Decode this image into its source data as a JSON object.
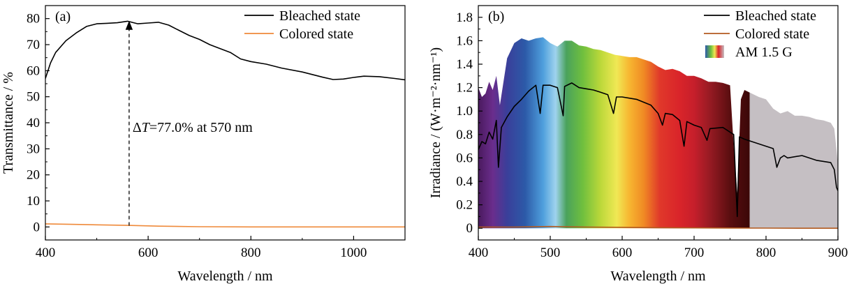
{
  "chart_data": [
    {
      "type": "line",
      "panel_label": "(a)",
      "xlabel": "Wavelength / nm",
      "ylabel": "Transmittance / %",
      "xlim": [
        400,
        1100
      ],
      "ylim": [
        -5,
        85
      ],
      "xticks": [
        400,
        600,
        800,
        1000
      ],
      "yticks": [
        0,
        10,
        20,
        30,
        40,
        50,
        60,
        70,
        80
      ],
      "grid": false,
      "legend_position": "top-right",
      "annotation": {
        "prefix": "Δ",
        "symbol": "T",
        "text": "=77.0% at 570 nm",
        "arrow_x": 563,
        "arrow_from_y": 0.5,
        "arrow_to_y": 78.5
      },
      "series": [
        {
          "name": "Bleached state",
          "color": "#000000",
          "x": [
            400,
            410,
            420,
            440,
            460,
            480,
            500,
            520,
            540,
            560,
            580,
            600,
            620,
            640,
            660,
            680,
            700,
            720,
            740,
            760,
            780,
            800,
            830,
            860,
            900,
            940,
            960,
            980,
            1000,
            1020,
            1050,
            1080,
            1100
          ],
          "y": [
            57,
            63,
            67,
            71.5,
            74.5,
            77,
            78,
            78.2,
            78.4,
            79,
            78,
            78.3,
            78.6,
            77.5,
            75.5,
            73.5,
            72,
            70,
            68.5,
            67,
            64.5,
            63.5,
            62.5,
            61,
            59.5,
            57.5,
            56.6,
            56.8,
            57.4,
            57.9,
            57.7,
            57,
            56.5
          ]
        },
        {
          "name": "Colored state",
          "color": "#ef8a3a",
          "x": [
            400,
            450,
            500,
            560,
            620,
            700,
            800,
            900,
            1000,
            1100
          ],
          "y": [
            1.2,
            1.0,
            0.8,
            0.6,
            0.3,
            0.1,
            0,
            0,
            0,
            0
          ]
        }
      ]
    },
    {
      "type": "line",
      "panel_label": "(b)",
      "xlabel": "Wavelength / nm",
      "ylabel": "Irradiance / (W·m⁻²·nm⁻¹)",
      "xlim": [
        400,
        900
      ],
      "ylim": [
        -0.1,
        1.9
      ],
      "xticks": [
        400,
        500,
        600,
        700,
        800,
        900
      ],
      "yticks": [
        0,
        0.2,
        0.4,
        0.6,
        0.8,
        1.0,
        1.2,
        1.4,
        1.6,
        1.8
      ],
      "grid": false,
      "legend_position": "top-right",
      "series": [
        {
          "name": "Bleached state",
          "color": "#000000",
          "x": [
            400,
            405,
            410,
            415,
            420,
            425,
            428,
            432,
            440,
            450,
            460,
            470,
            480,
            486,
            490,
            500,
            510,
            518,
            520,
            530,
            540,
            550,
            560,
            570,
            580,
            588,
            592,
            600,
            620,
            640,
            650,
            656,
            660,
            670,
            680,
            686,
            690,
            700,
            710,
            718,
            722,
            740,
            755,
            760,
            763,
            770,
            780,
            800,
            810,
            815,
            820,
            825,
            830,
            850,
            870,
            890,
            895,
            898,
            900
          ],
          "y": [
            0.67,
            0.74,
            0.72,
            0.82,
            0.76,
            0.92,
            0.52,
            0.86,
            0.95,
            1.04,
            1.1,
            1.17,
            1.22,
            0.98,
            1.22,
            1.22,
            1.2,
            0.96,
            1.21,
            1.24,
            1.2,
            1.19,
            1.18,
            1.16,
            1.14,
            0.98,
            1.12,
            1.12,
            1.1,
            1.05,
            0.98,
            0.88,
            0.98,
            0.97,
            0.92,
            0.7,
            0.91,
            0.88,
            0.86,
            0.75,
            0.85,
            0.86,
            0.8,
            0.1,
            0.78,
            0.76,
            0.74,
            0.7,
            0.68,
            0.52,
            0.6,
            0.62,
            0.6,
            0.62,
            0.58,
            0.56,
            0.5,
            0.35,
            0.32
          ]
        },
        {
          "name": "Colored state",
          "color": "#b35a1f",
          "x": [
            400,
            450,
            500,
            550,
            600,
            650,
            700,
            750,
            800,
            850,
            900
          ],
          "y": [
            0.01,
            0.01,
            0.015,
            0.01,
            0.008,
            0.005,
            0.003,
            0.002,
            0.001,
            0,
            0
          ]
        },
        {
          "name": "AM 1.5 G",
          "style": "filled-area with rainbow gradient (grey beyond ~780 nm)",
          "x": [
            400,
            405,
            410,
            415,
            420,
            425,
            430,
            440,
            450,
            460,
            470,
            480,
            490,
            500,
            510,
            520,
            530,
            540,
            550,
            560,
            570,
            580,
            590,
            600,
            610,
            620,
            630,
            640,
            650,
            660,
            670,
            680,
            690,
            700,
            710,
            720,
            730,
            740,
            750,
            755,
            760,
            765,
            770,
            780,
            790,
            800,
            810,
            820,
            830,
            840,
            850,
            860,
            870,
            880,
            890,
            895,
            900
          ],
          "y": [
            1.2,
            1.12,
            1.15,
            1.25,
            1.18,
            1.3,
            1.05,
            1.45,
            1.58,
            1.62,
            1.6,
            1.62,
            1.63,
            1.58,
            1.55,
            1.6,
            1.6,
            1.56,
            1.55,
            1.53,
            1.52,
            1.5,
            1.48,
            1.47,
            1.46,
            1.46,
            1.44,
            1.42,
            1.38,
            1.35,
            1.36,
            1.34,
            1.3,
            1.3,
            1.28,
            1.25,
            1.25,
            1.24,
            1.22,
            0.7,
            0.3,
            1.1,
            1.18,
            1.15,
            1.12,
            1.1,
            1.02,
            0.98,
            1.0,
            0.96,
            0.96,
            0.95,
            0.93,
            0.92,
            0.9,
            0.85,
            0.55
          ]
        }
      ]
    }
  ]
}
